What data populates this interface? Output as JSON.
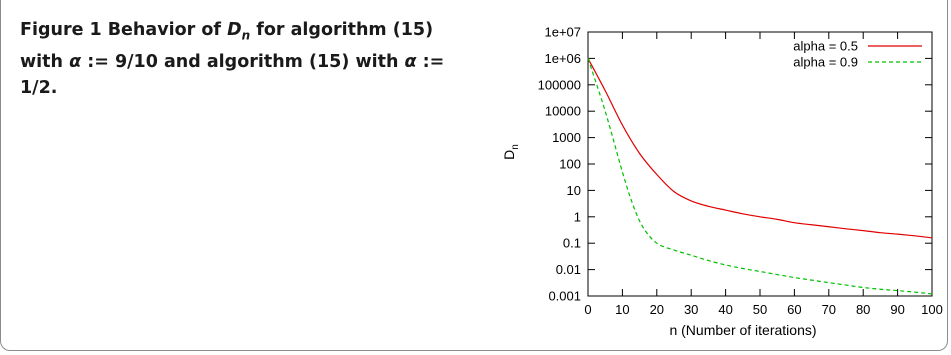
{
  "figure": {
    "label": "Figure 1",
    "caption_parts": [
      {
        "t": "Behavior of ",
        "i": false
      },
      {
        "t": "D",
        "i": true
      },
      {
        "t": "n",
        "i": true,
        "sub": true
      },
      {
        "t": " for algorithm (15) with ",
        "i": false
      },
      {
        "t": "α",
        "i": true
      },
      {
        "t": " := 9/10 and algorithm (15) with ",
        "i": false
      },
      {
        "t": "α",
        "i": true
      },
      {
        "t": " := 1/2.",
        "i": false
      }
    ]
  },
  "chart_data": {
    "type": "line",
    "xlabel": "n (Number of iterations)",
    "ylabel": "D",
    "ylabel_sub": "n",
    "y_scale": "log",
    "xlim": [
      0,
      100
    ],
    "ylim": [
      0.001,
      10000000
    ],
    "x_ticks": [
      "0",
      "10",
      "20",
      "30",
      "40",
      "50",
      "60",
      "70",
      "80",
      "90",
      "100"
    ],
    "y_ticks": [
      "0.001",
      "0.01",
      "0.1",
      "1",
      "10",
      "100",
      "1000",
      "10000",
      "100000",
      "1e+06",
      "1e+07"
    ],
    "grid": false,
    "legend_position": "top-right",
    "series": [
      {
        "name": "alpha = 0.5",
        "color": "#e00000",
        "dash": "solid",
        "x": [
          0,
          5,
          10,
          15,
          20,
          25,
          30,
          35,
          40,
          45,
          50,
          55,
          60,
          65,
          70,
          75,
          80,
          85,
          90,
          95,
          100
        ],
        "y": [
          1000000,
          60000,
          3000,
          250,
          40,
          9,
          4,
          2.5,
          1.8,
          1.3,
          1,
          0.8,
          0.6,
          0.5,
          0.42,
          0.35,
          0.3,
          0.25,
          0.22,
          0.19,
          0.16
        ]
      },
      {
        "name": "alpha = 0.9",
        "color": "#00c000",
        "dash": "dashed",
        "x": [
          0,
          5,
          10,
          13,
          16,
          20,
          25,
          30,
          35,
          40,
          45,
          50,
          55,
          60,
          65,
          70,
          75,
          80,
          85,
          90,
          95,
          100
        ],
        "y": [
          1000000,
          10000,
          50,
          3,
          0.4,
          0.1,
          0.055,
          0.035,
          0.022,
          0.015,
          0.011,
          0.0085,
          0.0065,
          0.005,
          0.004,
          0.0032,
          0.0026,
          0.0021,
          0.0018,
          0.0016,
          0.0014,
          0.0012
        ]
      }
    ]
  }
}
